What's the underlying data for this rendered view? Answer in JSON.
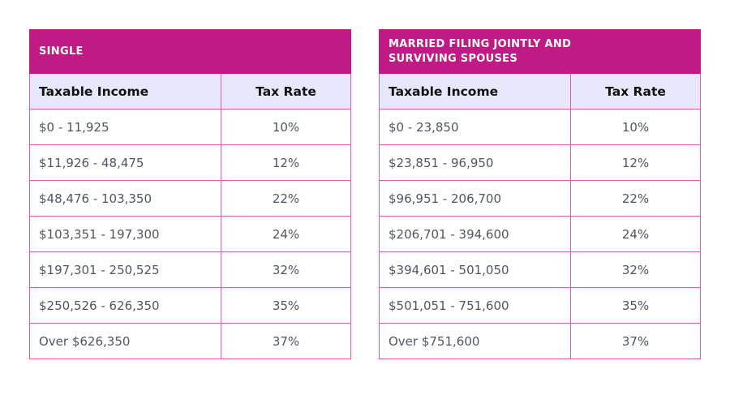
{
  "tables": [
    {
      "title": "SINGLE",
      "headers": [
        "Taxable Income",
        "Tax Rate"
      ],
      "rows": [
        [
          "$0 - 11,925",
          "10%"
        ],
        [
          "$11,926 - 48,475",
          "12%"
        ],
        [
          "$48,476 - 103,350",
          "22%"
        ],
        [
          "$103,351 - 197,300",
          "24%"
        ],
        [
          "$197,301 - 250,525",
          "32%"
        ],
        [
          "$250,526 - 626,350",
          "35%"
        ],
        [
          "Over $626,350",
          "37%"
        ]
      ]
    },
    {
      "title": "MARRIED FILING JOINTLY AND SURVIVING SPOUSES",
      "headers": [
        "Taxable Income",
        "Tax Rate"
      ],
      "rows": [
        [
          "$0 - 23,850",
          "10%"
        ],
        [
          "$23,851 - 96,950",
          "12%"
        ],
        [
          "$96,951 - 206,700",
          "22%"
        ],
        [
          "$206,701 - 394,600",
          "24%"
        ],
        [
          "$394,601 - 501,050",
          "32%"
        ],
        [
          "$501,051 - 751,600",
          "35%"
        ],
        [
          "Over $751,600",
          "37%"
        ]
      ]
    }
  ],
  "colors": {
    "header": "#c01a84",
    "column_header": "#e8e8fc",
    "border": "#d65fb4"
  }
}
